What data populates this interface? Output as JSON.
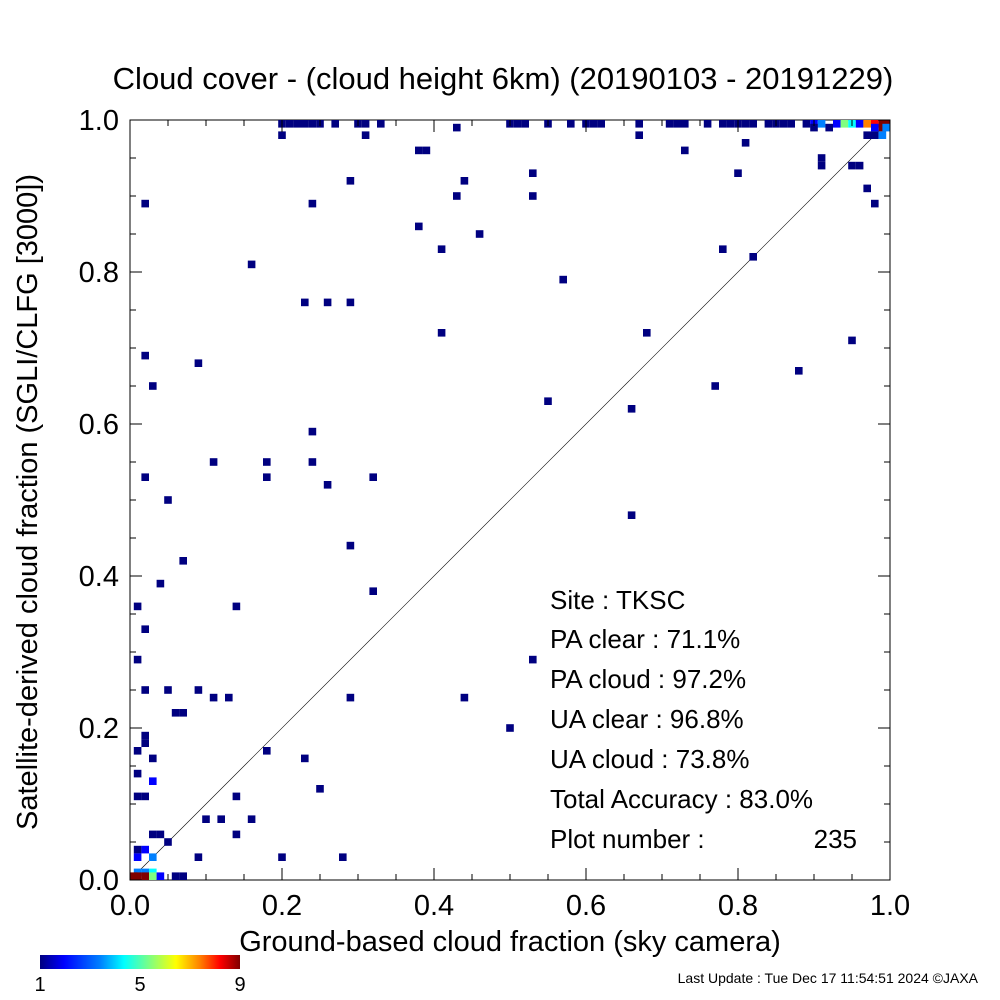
{
  "chart_data": {
    "type": "heatmap",
    "title": "Cloud cover - (cloud height 6km)  (20190103 - 20191229)",
    "xlabel": "Ground-based cloud fraction (sky camera)",
    "ylabel": "Satellite-derived cloud fraction (SGLI/CLFG [3000])",
    "xlim": [
      0.0,
      1.0
    ],
    "ylim": [
      0.0,
      1.0
    ],
    "x_ticks": [
      "0.0",
      "0.2",
      "0.4",
      "0.6",
      "0.8",
      "1.0"
    ],
    "y_ticks": [
      "0.0",
      "0.2",
      "0.4",
      "0.6",
      "0.8",
      "1.0"
    ],
    "reference_line": "y = x",
    "grid": false,
    "colorbar": {
      "min": 1,
      "max": 9,
      "tick_labels": [
        "1",
        "5",
        "9"
      ],
      "colors": [
        "#000080",
        "#0000ff",
        "#0080ff",
        "#00ffff",
        "#80ff80",
        "#ffff00",
        "#ff8000",
        "#ff0000",
        "#800000"
      ]
    },
    "points": [
      {
        "x": 0.2,
        "y": 1.0,
        "count": 1
      },
      {
        "x": 0.21,
        "y": 1.0,
        "count": 1
      },
      {
        "x": 0.22,
        "y": 1.0,
        "count": 1
      },
      {
        "x": 0.23,
        "y": 1.0,
        "count": 1
      },
      {
        "x": 0.24,
        "y": 1.0,
        "count": 1
      },
      {
        "x": 0.25,
        "y": 1.0,
        "count": 1
      },
      {
        "x": 0.27,
        "y": 1.0,
        "count": 1
      },
      {
        "x": 0.3,
        "y": 1.0,
        "count": 1
      },
      {
        "x": 0.31,
        "y": 1.0,
        "count": 1
      },
      {
        "x": 0.33,
        "y": 1.0,
        "count": 1
      },
      {
        "x": 0.5,
        "y": 1.0,
        "count": 1
      },
      {
        "x": 0.51,
        "y": 1.0,
        "count": 1
      },
      {
        "x": 0.52,
        "y": 1.0,
        "count": 1
      },
      {
        "x": 0.55,
        "y": 1.0,
        "count": 1
      },
      {
        "x": 0.58,
        "y": 1.0,
        "count": 1
      },
      {
        "x": 0.6,
        "y": 1.0,
        "count": 1
      },
      {
        "x": 0.61,
        "y": 1.0,
        "count": 1
      },
      {
        "x": 0.62,
        "y": 1.0,
        "count": 1
      },
      {
        "x": 0.67,
        "y": 1.0,
        "count": 1
      },
      {
        "x": 0.71,
        "y": 1.0,
        "count": 1
      },
      {
        "x": 0.72,
        "y": 1.0,
        "count": 1
      },
      {
        "x": 0.73,
        "y": 1.0,
        "count": 1
      },
      {
        "x": 0.76,
        "y": 1.0,
        "count": 1
      },
      {
        "x": 0.78,
        "y": 1.0,
        "count": 1
      },
      {
        "x": 0.79,
        "y": 1.0,
        "count": 1
      },
      {
        "x": 0.8,
        "y": 1.0,
        "count": 1
      },
      {
        "x": 0.81,
        "y": 1.0,
        "count": 1
      },
      {
        "x": 0.82,
        "y": 1.0,
        "count": 1
      },
      {
        "x": 0.84,
        "y": 1.0,
        "count": 1
      },
      {
        "x": 0.85,
        "y": 1.0,
        "count": 1
      },
      {
        "x": 0.86,
        "y": 1.0,
        "count": 1
      },
      {
        "x": 0.87,
        "y": 1.0,
        "count": 1
      },
      {
        "x": 0.89,
        "y": 1.0,
        "count": 1
      },
      {
        "x": 0.9,
        "y": 1.0,
        "count": 2
      },
      {
        "x": 0.91,
        "y": 1.0,
        "count": 3
      },
      {
        "x": 0.93,
        "y": 1.0,
        "count": 2
      },
      {
        "x": 0.94,
        "y": 1.0,
        "count": 5
      },
      {
        "x": 0.95,
        "y": 1.0,
        "count": 4
      },
      {
        "x": 0.96,
        "y": 1.0,
        "count": 2
      },
      {
        "x": 0.97,
        "y": 1.0,
        "count": 7
      },
      {
        "x": 0.98,
        "y": 1.0,
        "count": 8
      },
      {
        "x": 0.99,
        "y": 1.0,
        "count": 9
      },
      {
        "x": 1.0,
        "y": 1.0,
        "count": 9
      },
      {
        "x": 0.99,
        "y": 0.99,
        "count": 9
      },
      {
        "x": 1.0,
        "y": 0.99,
        "count": 3
      },
      {
        "x": 0.98,
        "y": 0.99,
        "count": 2
      },
      {
        "x": 0.9,
        "y": 0.99,
        "count": 1
      },
      {
        "x": 0.92,
        "y": 0.99,
        "count": 1
      },
      {
        "x": 0.97,
        "y": 0.98,
        "count": 1
      },
      {
        "x": 0.98,
        "y": 0.98,
        "count": 1
      },
      {
        "x": 0.99,
        "y": 0.98,
        "count": 3
      },
      {
        "x": 0.2,
        "y": 0.98,
        "count": 1
      },
      {
        "x": 0.31,
        "y": 0.98,
        "count": 1
      },
      {
        "x": 0.43,
        "y": 0.99,
        "count": 1
      },
      {
        "x": 0.67,
        "y": 0.98,
        "count": 1
      },
      {
        "x": 0.81,
        "y": 0.97,
        "count": 1
      },
      {
        "x": 0.38,
        "y": 0.96,
        "count": 1
      },
      {
        "x": 0.39,
        "y": 0.96,
        "count": 1
      },
      {
        "x": 0.73,
        "y": 0.96,
        "count": 1
      },
      {
        "x": 0.91,
        "y": 0.95,
        "count": 1
      },
      {
        "x": 0.91,
        "y": 0.94,
        "count": 1
      },
      {
        "x": 0.95,
        "y": 0.94,
        "count": 1
      },
      {
        "x": 0.96,
        "y": 0.94,
        "count": 1
      },
      {
        "x": 0.53,
        "y": 0.93,
        "count": 1
      },
      {
        "x": 0.8,
        "y": 0.93,
        "count": 1
      },
      {
        "x": 0.29,
        "y": 0.92,
        "count": 1
      },
      {
        "x": 0.44,
        "y": 0.92,
        "count": 1
      },
      {
        "x": 0.97,
        "y": 0.91,
        "count": 1
      },
      {
        "x": 0.43,
        "y": 0.9,
        "count": 1
      },
      {
        "x": 0.53,
        "y": 0.9,
        "count": 1
      },
      {
        "x": 0.02,
        "y": 0.89,
        "count": 1
      },
      {
        "x": 0.24,
        "y": 0.89,
        "count": 1
      },
      {
        "x": 0.98,
        "y": 0.89,
        "count": 1
      },
      {
        "x": 0.38,
        "y": 0.86,
        "count": 1
      },
      {
        "x": 0.46,
        "y": 0.85,
        "count": 1
      },
      {
        "x": 0.41,
        "y": 0.83,
        "count": 1
      },
      {
        "x": 0.78,
        "y": 0.83,
        "count": 1
      },
      {
        "x": 0.82,
        "y": 0.82,
        "count": 1
      },
      {
        "x": 0.16,
        "y": 0.81,
        "count": 1
      },
      {
        "x": 0.57,
        "y": 0.79,
        "count": 1
      },
      {
        "x": 0.23,
        "y": 0.76,
        "count": 1
      },
      {
        "x": 0.26,
        "y": 0.76,
        "count": 1
      },
      {
        "x": 0.29,
        "y": 0.76,
        "count": 1
      },
      {
        "x": 0.41,
        "y": 0.72,
        "count": 1
      },
      {
        "x": 0.68,
        "y": 0.72,
        "count": 1
      },
      {
        "x": 0.95,
        "y": 0.71,
        "count": 1
      },
      {
        "x": 0.02,
        "y": 0.69,
        "count": 1
      },
      {
        "x": 0.09,
        "y": 0.68,
        "count": 1
      },
      {
        "x": 0.88,
        "y": 0.67,
        "count": 1
      },
      {
        "x": 0.03,
        "y": 0.65,
        "count": 1
      },
      {
        "x": 0.77,
        "y": 0.65,
        "count": 1
      },
      {
        "x": 0.55,
        "y": 0.63,
        "count": 1
      },
      {
        "x": 0.66,
        "y": 0.62,
        "count": 1
      },
      {
        "x": 0.24,
        "y": 0.59,
        "count": 1
      },
      {
        "x": 0.11,
        "y": 0.55,
        "count": 1
      },
      {
        "x": 0.18,
        "y": 0.55,
        "count": 1
      },
      {
        "x": 0.24,
        "y": 0.55,
        "count": 1
      },
      {
        "x": 0.02,
        "y": 0.53,
        "count": 1
      },
      {
        "x": 0.18,
        "y": 0.53,
        "count": 1
      },
      {
        "x": 0.32,
        "y": 0.53,
        "count": 1
      },
      {
        "x": 0.26,
        "y": 0.52,
        "count": 1
      },
      {
        "x": 0.05,
        "y": 0.5,
        "count": 1
      },
      {
        "x": 0.66,
        "y": 0.48,
        "count": 1
      },
      {
        "x": 0.29,
        "y": 0.44,
        "count": 1
      },
      {
        "x": 0.07,
        "y": 0.42,
        "count": 1
      },
      {
        "x": 0.04,
        "y": 0.39,
        "count": 1
      },
      {
        "x": 0.32,
        "y": 0.38,
        "count": 1
      },
      {
        "x": 0.01,
        "y": 0.36,
        "count": 1
      },
      {
        "x": 0.14,
        "y": 0.36,
        "count": 1
      },
      {
        "x": 0.02,
        "y": 0.33,
        "count": 1
      },
      {
        "x": 0.01,
        "y": 0.29,
        "count": 1
      },
      {
        "x": 0.53,
        "y": 0.29,
        "count": 1
      },
      {
        "x": 0.02,
        "y": 0.25,
        "count": 1
      },
      {
        "x": 0.05,
        "y": 0.25,
        "count": 1
      },
      {
        "x": 0.09,
        "y": 0.25,
        "count": 1
      },
      {
        "x": 0.11,
        "y": 0.24,
        "count": 1
      },
      {
        "x": 0.13,
        "y": 0.24,
        "count": 1
      },
      {
        "x": 0.29,
        "y": 0.24,
        "count": 1
      },
      {
        "x": 0.44,
        "y": 0.24,
        "count": 1
      },
      {
        "x": 0.06,
        "y": 0.22,
        "count": 1
      },
      {
        "x": 0.07,
        "y": 0.22,
        "count": 1
      },
      {
        "x": 0.5,
        "y": 0.2,
        "count": 1
      },
      {
        "x": 0.02,
        "y": 0.19,
        "count": 1
      },
      {
        "x": 0.02,
        "y": 0.18,
        "count": 1
      },
      {
        "x": 0.01,
        "y": 0.17,
        "count": 1
      },
      {
        "x": 0.18,
        "y": 0.17,
        "count": 1
      },
      {
        "x": 0.03,
        "y": 0.16,
        "count": 1
      },
      {
        "x": 0.23,
        "y": 0.16,
        "count": 1
      },
      {
        "x": 0.01,
        "y": 0.14,
        "count": 1
      },
      {
        "x": 0.03,
        "y": 0.13,
        "count": 2
      },
      {
        "x": 0.25,
        "y": 0.12,
        "count": 1
      },
      {
        "x": 0.01,
        "y": 0.11,
        "count": 1
      },
      {
        "x": 0.02,
        "y": 0.11,
        "count": 1
      },
      {
        "x": 0.14,
        "y": 0.11,
        "count": 1
      },
      {
        "x": 0.1,
        "y": 0.08,
        "count": 1
      },
      {
        "x": 0.12,
        "y": 0.08,
        "count": 1
      },
      {
        "x": 0.16,
        "y": 0.08,
        "count": 1
      },
      {
        "x": 0.03,
        "y": 0.06,
        "count": 1
      },
      {
        "x": 0.04,
        "y": 0.06,
        "count": 1
      },
      {
        "x": 0.14,
        "y": 0.06,
        "count": 1
      },
      {
        "x": 0.05,
        "y": 0.05,
        "count": 1
      },
      {
        "x": 0.01,
        "y": 0.04,
        "count": 1
      },
      {
        "x": 0.02,
        "y": 0.04,
        "count": 2
      },
      {
        "x": 0.01,
        "y": 0.03,
        "count": 2
      },
      {
        "x": 0.03,
        "y": 0.03,
        "count": 3
      },
      {
        "x": 0.09,
        "y": 0.03,
        "count": 1
      },
      {
        "x": 0.2,
        "y": 0.03,
        "count": 1
      },
      {
        "x": 0.28,
        "y": 0.03,
        "count": 1
      },
      {
        "x": 0.01,
        "y": 0.01,
        "count": 3
      },
      {
        "x": 0.02,
        "y": 0.01,
        "count": 3
      },
      {
        "x": 0.03,
        "y": 0.01,
        "count": 4
      },
      {
        "x": 0.01,
        "y": 0.0,
        "count": 9
      },
      {
        "x": 0.02,
        "y": 0.0,
        "count": 9
      },
      {
        "x": 0.03,
        "y": 0.0,
        "count": 5
      },
      {
        "x": 0.04,
        "y": 0.0,
        "count": 2
      },
      {
        "x": 0.06,
        "y": 0.0,
        "count": 1
      },
      {
        "x": 0.07,
        "y": 0.0,
        "count": 1
      },
      {
        "x": 0.0,
        "y": 0.0,
        "count": 9
      }
    ]
  },
  "stats": {
    "site": "Site : TKSC",
    "pa_clear": "PA clear :  71.1%",
    "pa_cloud": "PA cloud :  97.2%",
    "ua_clear": "UA clear :  96.8%",
    "ua_cloud": "UA cloud :  73.8%",
    "total_accuracy": "Total Accuracy :  83.0%",
    "plot_number_label": "Plot number :",
    "plot_number_value": "235"
  },
  "footer": {
    "last_update": "Last Update : Tue Dec 17 11:54:51 2024  ©JAXA"
  }
}
